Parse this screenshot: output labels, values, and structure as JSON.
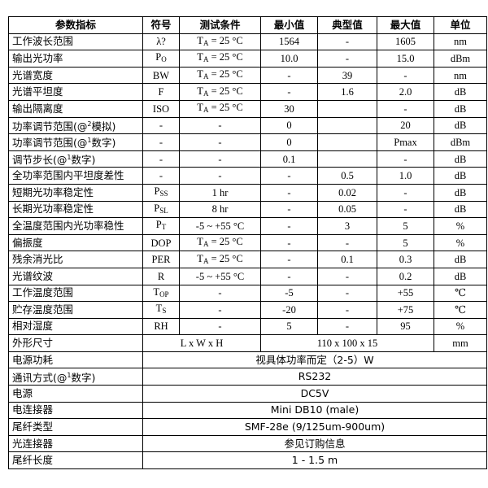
{
  "headers": [
    "参数指标",
    "符号",
    "测试条件",
    "最小值",
    "典型值",
    "最大值",
    "单位"
  ],
  "rows": [
    {
      "param": [
        {
          "t": "工作波长范围"
        }
      ],
      "sym": {
        "b": "λ?"
      },
      "cond": {
        "b": "T",
        "s": "A",
        "t": " = 25 °C"
      },
      "min": "1564",
      "typ": "-",
      "max": "1605",
      "unit": "nm"
    },
    {
      "param": [
        {
          "t": "输出光功率"
        }
      ],
      "sym": {
        "b": "P",
        "s": "O"
      },
      "cond": {
        "b": "T",
        "s": "A",
        "t": " = 25 °C"
      },
      "min": "10.0",
      "typ": "-",
      "max": "15.0",
      "unit": "dBm"
    },
    {
      "param": [
        {
          "t": "光谱宽度"
        }
      ],
      "sym": {
        "b": "BW"
      },
      "cond": {
        "b": "T",
        "s": "A",
        "t": " = 25 °C"
      },
      "min": "-",
      "typ": "39",
      "max": "-",
      "unit": "nm"
    },
    {
      "param": [
        {
          "t": "光谱平坦度"
        }
      ],
      "sym": {
        "b": "F"
      },
      "cond": {
        "b": "T",
        "s": "A",
        "t": " = 25 °C"
      },
      "min": "-",
      "typ": "1.6",
      "max": "2.0",
      "unit": "dB"
    },
    {
      "param": [
        {
          "t": "输出隔离度"
        }
      ],
      "sym": {
        "b": "ISO"
      },
      "cond": {
        "b": "T",
        "s": "A",
        "t": " = 25 °C"
      },
      "min": "30",
      "typ": "",
      "max": "-",
      "unit": "dB"
    },
    {
      "param": [
        {
          "t": "功率调节范围(@"
        },
        {
          "sup": "2"
        },
        {
          "t": "模拟)"
        }
      ],
      "sym": {
        "b": "-"
      },
      "cond": {
        "b": "-"
      },
      "min": "0",
      "typ": "",
      "max": "20",
      "unit": "dB"
    },
    {
      "param": [
        {
          "t": "功率调节范围(@"
        },
        {
          "sup": "1"
        },
        {
          "t": "数字)"
        }
      ],
      "sym": {
        "b": "-"
      },
      "cond": {
        "b": "-"
      },
      "min": "0",
      "typ": "",
      "max": "Pmax",
      "unit": "dBm"
    },
    {
      "param": [
        {
          "t": "调节步长(@"
        },
        {
          "sup": "1"
        },
        {
          "t": "数字)"
        }
      ],
      "sym": {
        "b": "-"
      },
      "cond": {
        "b": "-"
      },
      "min": "0.1",
      "typ": "",
      "max": "-",
      "unit": "dB"
    },
    {
      "param": [
        {
          "t": "全功率范围内平坦度差性"
        }
      ],
      "sym": {
        "b": "-"
      },
      "cond": {
        "b": "-"
      },
      "min": "-",
      "typ": "0.5",
      "max": "1.0",
      "unit": "dB"
    },
    {
      "param": [
        {
          "t": "短期光功率稳定性"
        }
      ],
      "sym": {
        "b": "P",
        "s": "SS"
      },
      "cond": {
        "b": "1 hr"
      },
      "min": "-",
      "typ": "0.02",
      "max": "-",
      "unit": "dB"
    },
    {
      "param": [
        {
          "t": "长期光功率稳定性"
        }
      ],
      "sym": {
        "b": "P",
        "s": "SL"
      },
      "cond": {
        "b": "8 hr"
      },
      "min": "-",
      "typ": "0.05",
      "max": "-",
      "unit": "dB"
    },
    {
      "param": [
        {
          "t": "全温度范围内光功率稳性"
        }
      ],
      "sym": {
        "b": "P",
        "s": "T"
      },
      "cond": {
        "b": "-5 ~ +55 °C"
      },
      "min": "-",
      "typ": "3",
      "max": "5",
      "unit": "%"
    },
    {
      "param": [
        {
          "t": "偏振度"
        }
      ],
      "sym": {
        "b": "DOP"
      },
      "cond": {
        "b": "T",
        "s": "A",
        "t": " = 25 °C"
      },
      "min": "-",
      "typ": "-",
      "max": "5",
      "unit": "%"
    },
    {
      "param": [
        {
          "t": "残余消光比"
        }
      ],
      "sym": {
        "b": "PER"
      },
      "cond": {
        "b": "T",
        "s": "A",
        "t": " = 25 °C"
      },
      "min": "-",
      "typ": "0.1",
      "max": "0.3",
      "unit": "dB"
    },
    {
      "param": [
        {
          "t": "光谱纹波"
        }
      ],
      "sym": {
        "b": "R"
      },
      "cond": {
        "b": "-5 ~ +55 °C"
      },
      "min": "-",
      "typ": "-",
      "max": "0.2",
      "unit": "dB"
    },
    {
      "param": [
        {
          "t": "工作温度范围"
        }
      ],
      "sym": {
        "b": "T",
        "s": "OP"
      },
      "cond": {
        "b": "-"
      },
      "min": "-5",
      "typ": "-",
      "max": "+55",
      "unit": "℃"
    },
    {
      "param": [
        {
          "t": "贮存温度范围"
        }
      ],
      "sym": {
        "b": "T",
        "s": "S"
      },
      "cond": {
        "b": "-"
      },
      "min": "-20",
      "typ": "-",
      "max": "+75",
      "unit": "℃"
    },
    {
      "param": [
        {
          "t": "相对湿度"
        }
      ],
      "sym": {
        "b": "RH"
      },
      "cond": {
        "b": "-"
      },
      "min": "5",
      "typ": "-",
      "max": "95",
      "unit": "%"
    }
  ],
  "dimensions": {
    "param": "外形尺寸",
    "label": "L x W x H",
    "value": "110 x 100 x 15",
    "unit": "mm"
  },
  "merged_rows": [
    {
      "param": [
        {
          "t": "电源功耗"
        }
      ],
      "value": "视具体功率而定（2-5）W"
    },
    {
      "param": [
        {
          "t": "通讯方式(@"
        },
        {
          "sup": "1"
        },
        {
          "t": "数字)"
        }
      ],
      "value": "RS232"
    },
    {
      "param": [
        {
          "t": "电源"
        }
      ],
      "value": "DC5V"
    },
    {
      "param": [
        {
          "t": "电连接器"
        }
      ],
      "value": "Mini DB10 (male)"
    },
    {
      "param": [
        {
          "t": "尾纤类型"
        }
      ],
      "value": "SMF-28e (9/125um-900um)"
    },
    {
      "param": [
        {
          "t": "光连接器"
        }
      ],
      "value": "参见订购信息"
    },
    {
      "param": [
        {
          "t": "尾纤长度"
        }
      ],
      "value": "1 - 1.5 m"
    }
  ]
}
